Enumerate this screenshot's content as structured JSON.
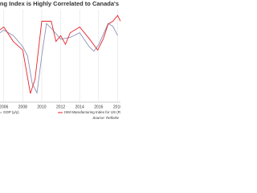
{
  "chart_data": {
    "type": "line",
    "title": "Manufacturing Index is Highly Correlated to Canada's",
    "source": "Source: Refinitiv",
    "xlim": [
      2005.6,
      2018.3
    ],
    "xticks": [
      2006,
      2008,
      2010,
      2012,
      2014,
      2016,
      2018
    ],
    "ylim": [
      -5,
      5
    ],
    "y2lim": [
      30,
      62
    ],
    "grid": true,
    "series": [
      {
        "name": "GDP (y/y)",
        "color": "#8a93b8",
        "x": [
          2005.6,
          2006,
          2007,
          2008,
          2008.5,
          2009,
          2009.5,
          2010,
          2010.5,
          2011,
          2012,
          2013,
          2014,
          2015,
          2015.5,
          2016,
          2017,
          2017.5,
          2018
        ],
        "values": [
          2.5,
          2.8,
          2.2,
          1.0,
          0,
          -3,
          -4,
          0,
          3.5,
          3,
          1.8,
          2,
          2.5,
          1,
          0.5,
          1.2,
          3.5,
          3.2,
          2.2
        ]
      },
      {
        "name": "ISM Manufacturing Index for US (R)",
        "color": "#e8232a",
        "axis": "y2",
        "x": [
          2005.6,
          2006,
          2007,
          2008,
          2008.8,
          2009.3,
          2010,
          2011,
          2011.5,
          2012,
          2012.5,
          2013,
          2014,
          2015,
          2015.9,
          2016.5,
          2017,
          2017.5,
          2018,
          2018.3
        ],
        "values": [
          55,
          56,
          51,
          48,
          33,
          38,
          58,
          58,
          51,
          53,
          50,
          54,
          56,
          52,
          48,
          52,
          57,
          58,
          60,
          58
        ]
      }
    ]
  }
}
